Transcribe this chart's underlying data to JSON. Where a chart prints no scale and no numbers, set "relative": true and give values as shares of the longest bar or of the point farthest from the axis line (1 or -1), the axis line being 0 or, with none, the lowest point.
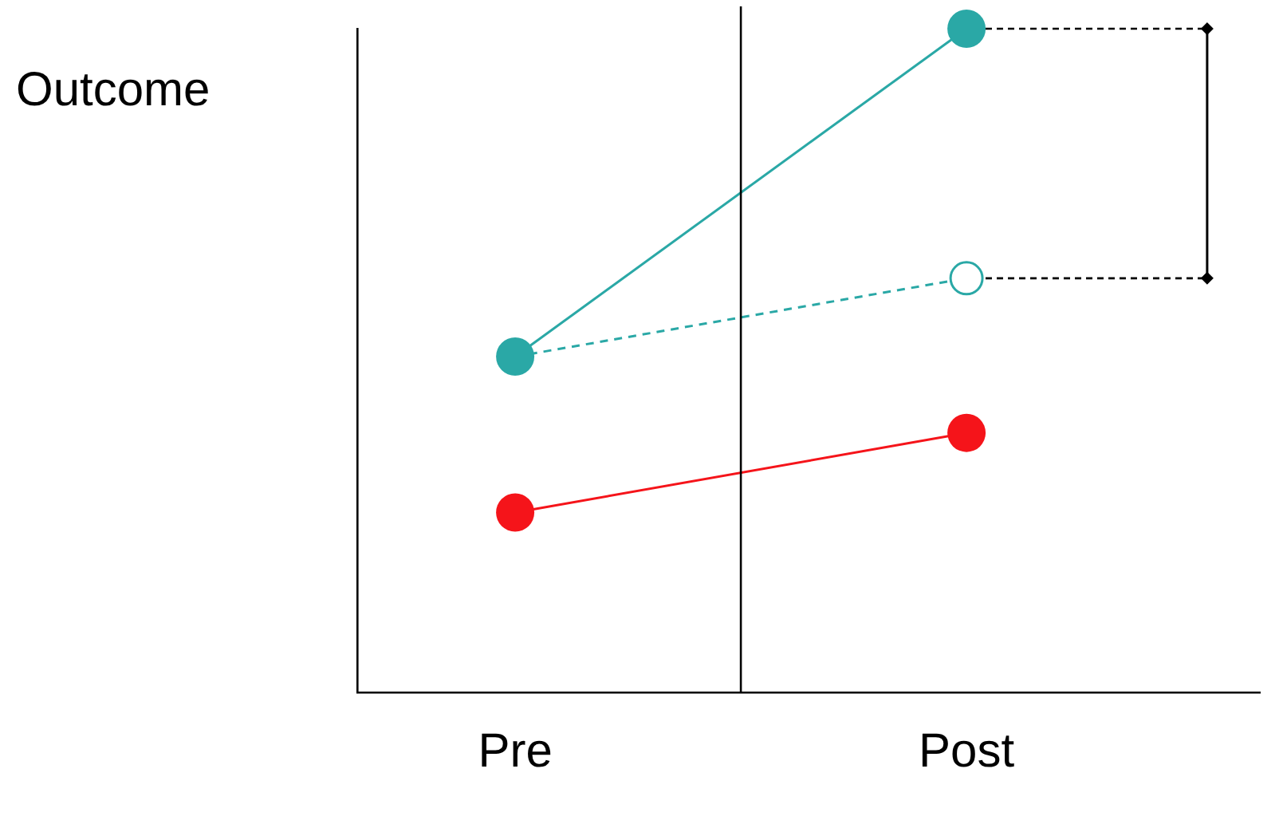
{
  "chart_data": {
    "type": "line",
    "relative": true,
    "ylabel": "Outcome",
    "categories": [
      "Pre",
      "Post"
    ],
    "series": [
      {
        "color": "#2aa8a6",
        "values": [
          0.506,
          1
        ],
        "line_style": "solid"
      },
      {
        "color": "#2aa8a6",
        "values": [
          0.506,
          0.624
        ],
        "line_style": "dashed"
      },
      {
        "color": "#f5141a",
        "values": [
          0.271,
          0.391
        ],
        "line_style": "solid"
      }
    ],
    "marker": "circle",
    "legend": false,
    "grid": false
  }
}
